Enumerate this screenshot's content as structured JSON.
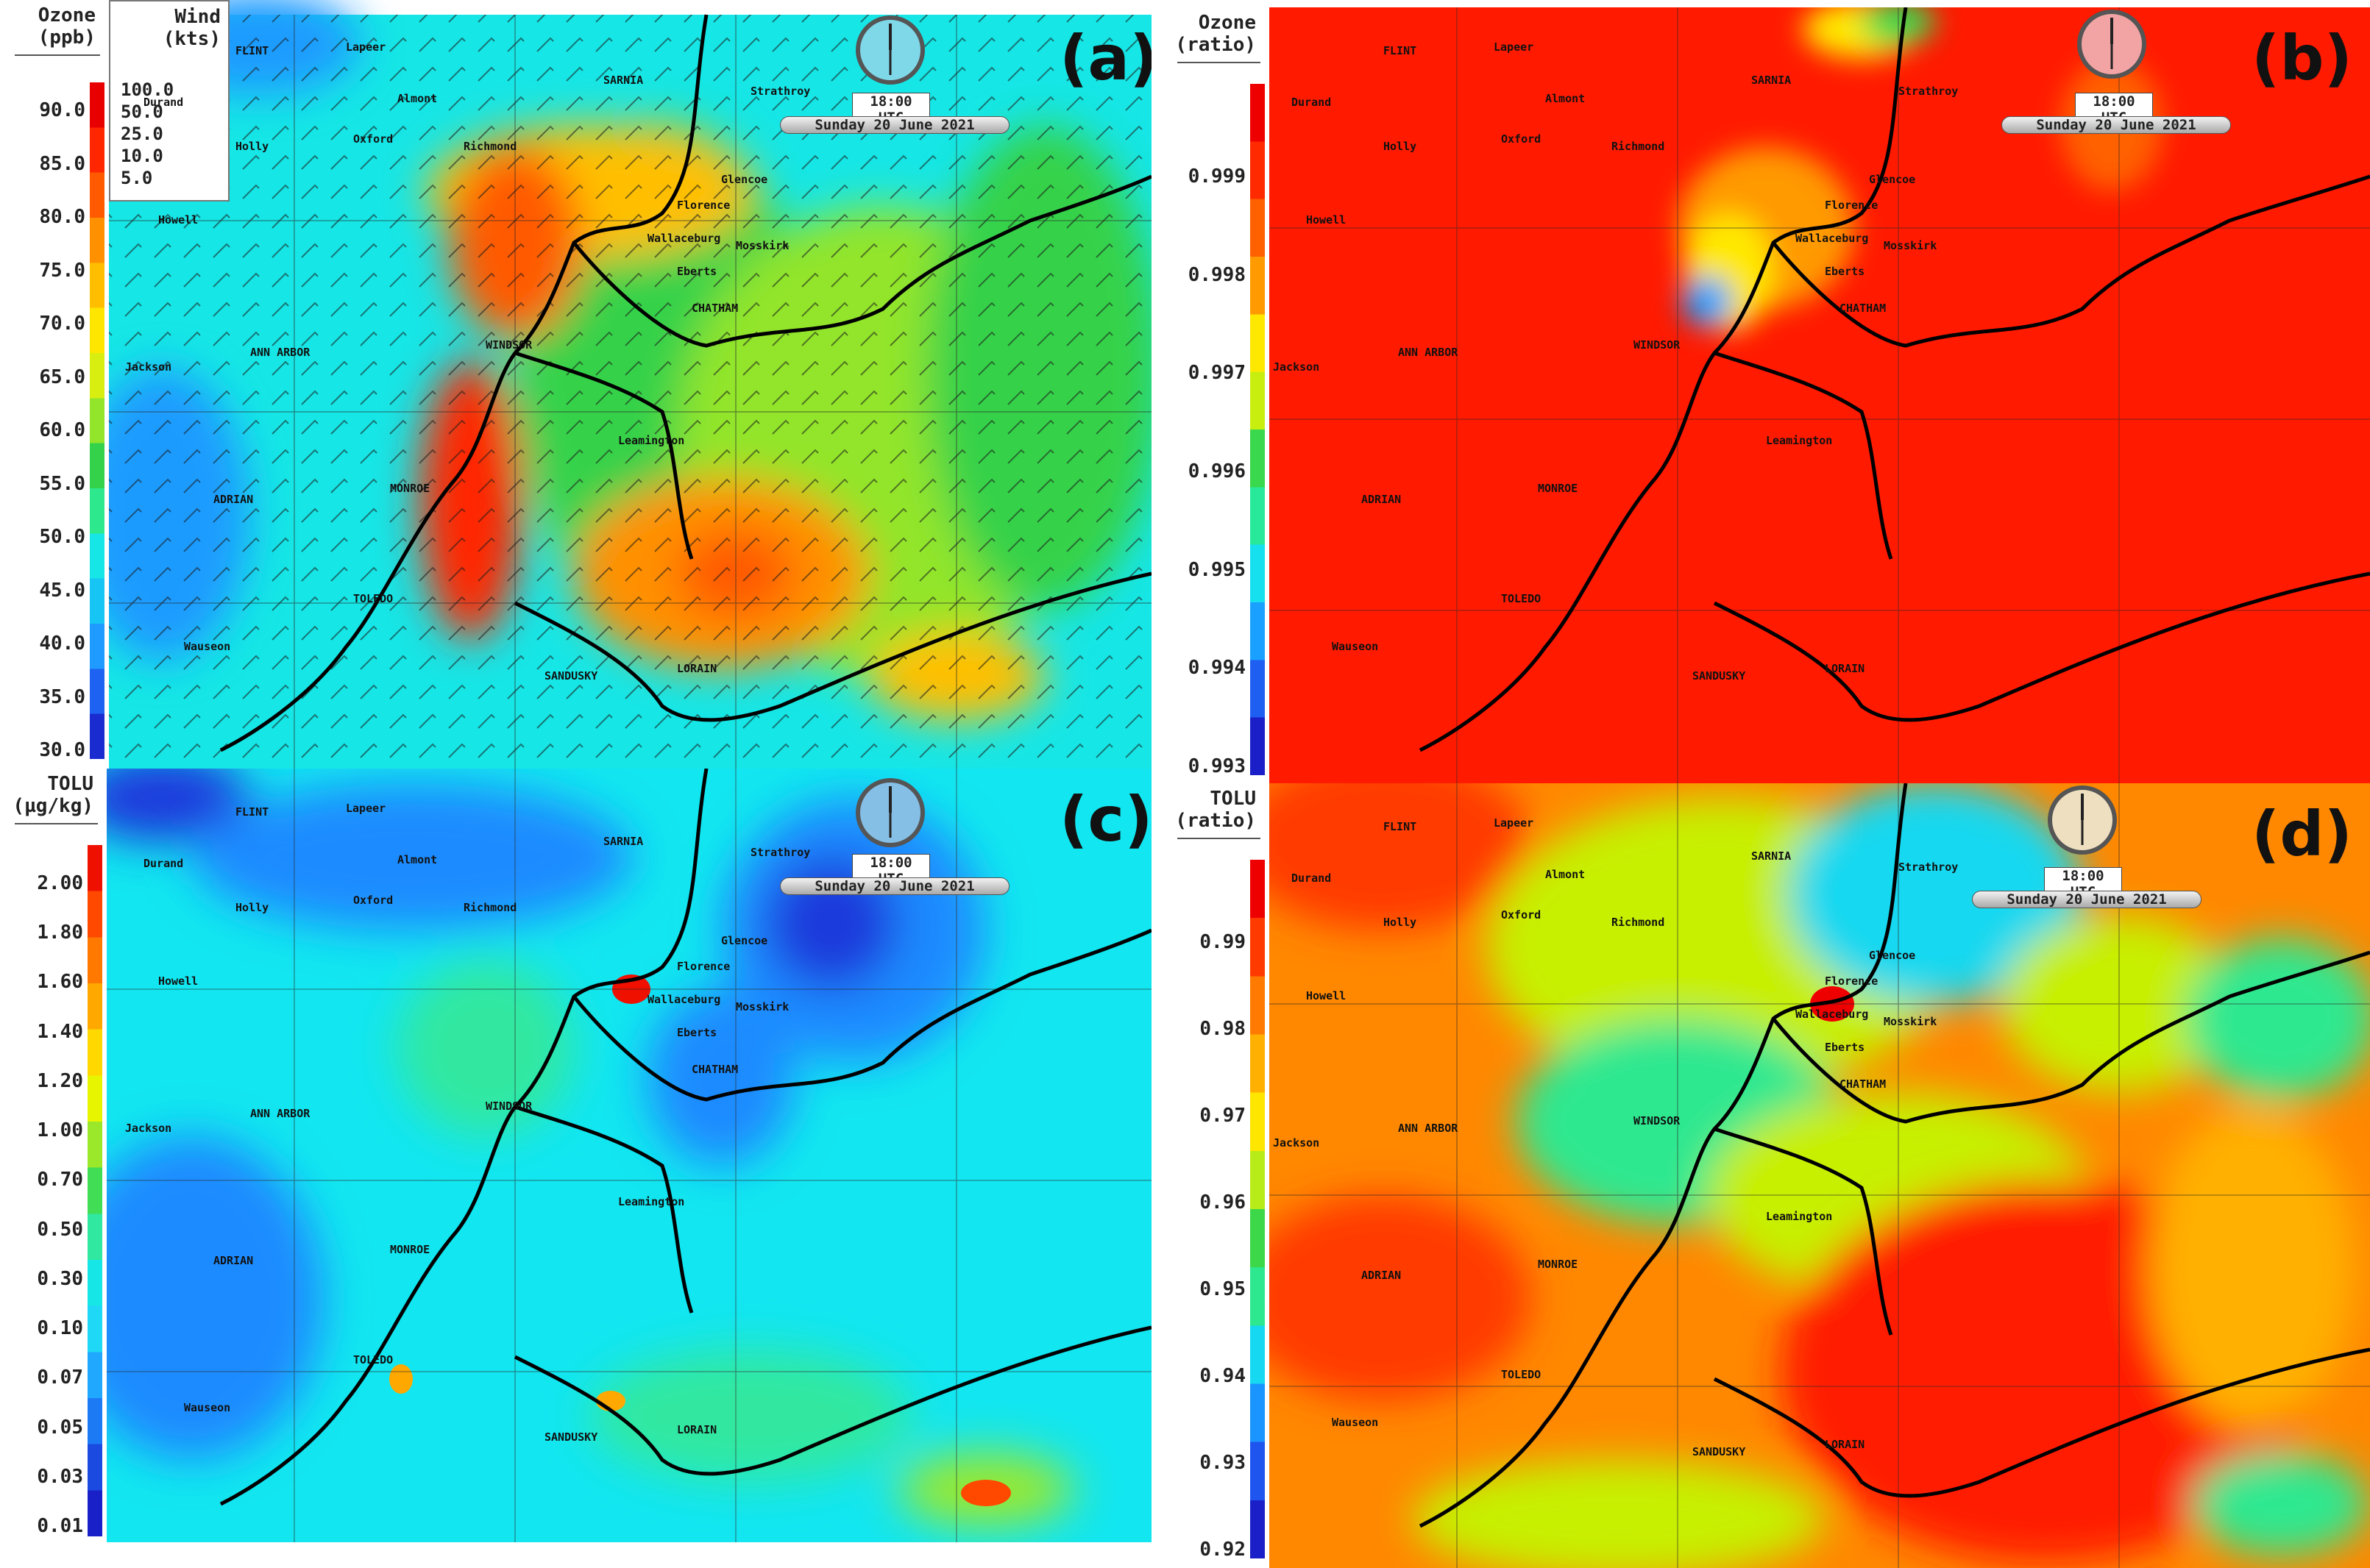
{
  "clock_time": "18:00 UTC",
  "date": "Sunday 20 June 2021",
  "colors": {
    "lake_blue": "#00e1e6",
    "ozone_green": "#25d24b",
    "ozone_orange": "#ff7a00",
    "ozone_red": "#ff1a00",
    "ratio_red": "#ff1a00",
    "tolu_cyan": "#12e6f0",
    "tolu_blue": "#1f8bff",
    "tolu_deep_blue": "#1b3bdc",
    "tolu_ratio_orange": "#ff8800",
    "tolu_ratio_yellow": "#c7ef00"
  },
  "cities": [
    {
      "name": "FLINT"
    },
    {
      "name": "Lapeer"
    },
    {
      "name": "Durand"
    },
    {
      "name": "Almont"
    },
    {
      "name": "Holly"
    },
    {
      "name": "Oxford"
    },
    {
      "name": "Richmond"
    },
    {
      "name": "SARNIA"
    },
    {
      "name": "Strathroy"
    },
    {
      "name": "Glencoe"
    },
    {
      "name": "Florence"
    },
    {
      "name": "Howell"
    },
    {
      "name": "Wallaceburg"
    },
    {
      "name": "Mosskirk"
    },
    {
      "name": "Eberts"
    },
    {
      "name": "CHATHAM"
    },
    {
      "name": "WINDSOR"
    },
    {
      "name": "ANN ARBOR"
    },
    {
      "name": "Jackson"
    },
    {
      "name": "Leamington"
    },
    {
      "name": "ADRIAN"
    },
    {
      "name": "MONROE"
    },
    {
      "name": "TOLEDO"
    },
    {
      "name": "Wauseon"
    },
    {
      "name": "SANDUSKY"
    },
    {
      "name": "LORAIN"
    }
  ],
  "panels": [
    {
      "id": "a",
      "letter": "(a)",
      "variable": "Ozone",
      "legend_title_1": "Ozone",
      "legend_title_2": "(ppb)",
      "colorbar": [
        "#1a2bd0",
        "#1d62f0",
        "#1f9bff",
        "#16c5f4",
        "#16e6e6",
        "#2ee88d",
        "#34d24a",
        "#92e52b",
        "#d8ee10",
        "#ffe600",
        "#ffbf00",
        "#ff9000",
        "#ff5a00",
        "#ff2600",
        "#e80000"
      ],
      "ticks": [
        "90.0",
        "85.0",
        "80.0",
        "75.0",
        "70.0",
        "65.0",
        "60.0",
        "55.0",
        "50.0",
        "45.0",
        "40.0",
        "35.0",
        "30.0"
      ],
      "wind_key": {
        "title_1": "Wind",
        "title_2": "(kts)",
        "items": [
          "100.0",
          "50.0",
          "25.0",
          "10.0",
          "5.0"
        ]
      }
    },
    {
      "id": "b",
      "letter": "(b)",
      "variable": "Ozone ratio",
      "legend_title_1": "Ozone",
      "legend_title_2": "(ratio)",
      "colorbar": [
        "#1b1fc8",
        "#1e5ef0",
        "#1aa0ff",
        "#16e0ee",
        "#28e89a",
        "#3ad84c",
        "#c8ee10",
        "#ffe800",
        "#ff9a00",
        "#ff6000",
        "#ff2a00",
        "#ee0000"
      ],
      "ticks": [
        "0.999",
        "0.998",
        "0.997",
        "0.996",
        "0.995",
        "0.994",
        "0.993"
      ]
    },
    {
      "id": "c",
      "letter": "(c)",
      "variable": "TOLU",
      "legend_title_1": "TOLU",
      "legend_title_2": "(µg/kg)",
      "colorbar": [
        "#1a20c8",
        "#1b4ae0",
        "#1d7af5",
        "#20a8ff",
        "#1ed8f5",
        "#16e6e6",
        "#30e8a0",
        "#40dd55",
        "#9be82a",
        "#e8f500",
        "#ffd800",
        "#ffa800",
        "#ff7800",
        "#ff4800",
        "#f01000"
      ],
      "ticks": [
        "2.00",
        "1.80",
        "1.60",
        "1.40",
        "1.20",
        "1.00",
        "0.70",
        "0.50",
        "0.30",
        "0.10",
        "0.07",
        "0.05",
        "0.03",
        "0.01"
      ]
    },
    {
      "id": "d",
      "letter": "(d)",
      "variable": "TOLU ratio",
      "legend_title_1": "TOLU",
      "legend_title_2": "(ratio)",
      "colorbar": [
        "#1b1fc8",
        "#1d55ee",
        "#1a95ff",
        "#16d8f0",
        "#2ee890",
        "#3cd84a",
        "#b8ec18",
        "#ffe600",
        "#ffb000",
        "#ff7a00",
        "#ff3a00",
        "#ee0000"
      ],
      "ticks": [
        "0.99",
        "0.98",
        "0.97",
        "0.96",
        "0.95",
        "0.94",
        "0.93",
        "0.92"
      ]
    }
  ]
}
